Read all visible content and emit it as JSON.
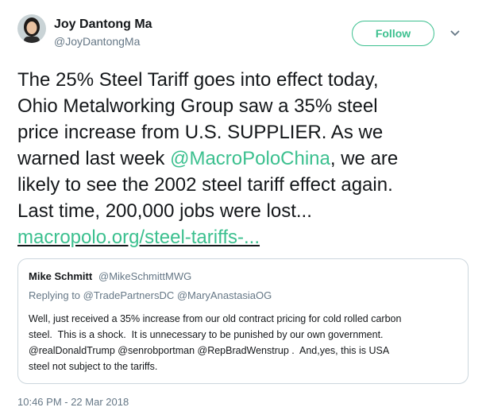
{
  "tweet": {
    "author": {
      "name": "Joy Dantong Ma",
      "handle": "@JoyDantongMa"
    },
    "follow_button": "Follow",
    "text_lines": [
      [
        "The 25% Steel Tariff goes into effect today,"
      ],
      [
        "Ohio Metalworking Group saw a 35% steel"
      ],
      [
        "price increase from U.S. SUPPLIER. As we"
      ],
      [
        "warned last week ",
        "@MacroPoloChina",
        ", we are"
      ],
      [
        "likely to see the 2002 steel tariff effect again."
      ],
      [
        "Last time, 200,000 jobs were lost..."
      ],
      [
        "macropolo.org/steel-tariffs-..."
      ]
    ],
    "quoted": {
      "name": "Mike Schmitt",
      "handle": "@MikeSchmittMWG",
      "replying_to": "Replying to @TradePartnersDC @MaryAnastasiaOG",
      "text_lines": [
        "Well, just received a 35% increase from our old contract pricing for cold rolled carbon",
        "steel.  This is a shock.  It is unnecessary to be punished by our own government.",
        "@realDonaldTrump @senrobportman @RepBradWenstrup .  And,yes, this is USA",
        "steel not subject to the tariffs."
      ]
    },
    "timestamp": "10:46 PM - 22 Mar 2018"
  }
}
